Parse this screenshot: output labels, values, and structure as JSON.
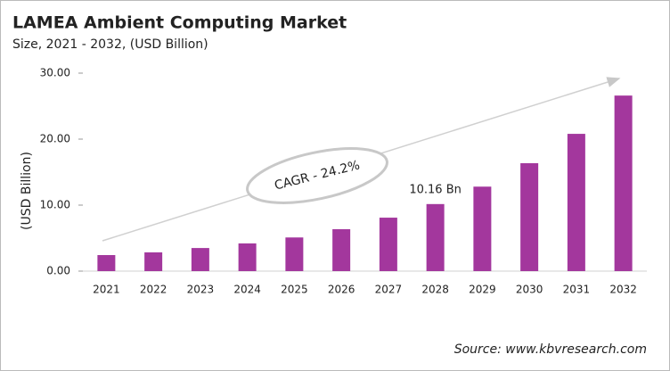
{
  "chart_data": {
    "type": "bar",
    "title": "LAMEA Ambient Computing Market",
    "subtitle": "Size, 2021 - 2032, (USD Billion)",
    "y_label": "(USD Billion)",
    "annotation": "CAGR - 24.2%",
    "source": "Source: www.kbvresearch.com",
    "categories": [
      "2021",
      "2022",
      "2023",
      "2024",
      "2025",
      "2026",
      "2027",
      "2028",
      "2029",
      "2030",
      "2031",
      "2032"
    ],
    "values": [
      2.43,
      2.84,
      3.5,
      4.2,
      5.1,
      6.35,
      8.1,
      10.16,
      12.8,
      16.35,
      20.8,
      26.6
    ],
    "value_labels": [
      null,
      null,
      null,
      null,
      null,
      null,
      null,
      "10.16 Bn",
      null,
      null,
      null,
      null
    ],
    "color": "#a3379d",
    "ylim": [
      0,
      30
    ],
    "yticks": [
      {
        "value": 0,
        "label": "0.00"
      },
      {
        "value": 10,
        "label": "10.00"
      },
      {
        "value": 20,
        "label": "20.00"
      },
      {
        "value": 30,
        "label": "30.00"
      }
    ],
    "grid": false
  }
}
